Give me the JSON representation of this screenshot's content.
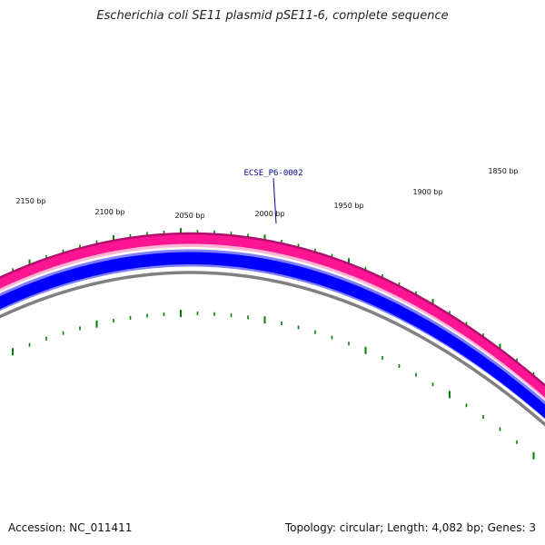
{
  "title": "Escherichia coli SE11 plasmid pSE11-6, complete sequence",
  "footer": {
    "accession": "Accession: NC_011411",
    "summary": "Topology: circular; Length: 4,082 bp; Genes: 3"
  },
  "colors": {
    "forward_track": "#ff1493",
    "forward_edge": "#b0106e",
    "forward_light": "#ffb6d5",
    "reverse_track": "#0000ff",
    "reverse_light": "#8080ff",
    "backbone": "#808080",
    "gc_marks": "#008000",
    "gene_label": "#00008b"
  },
  "scale_labels": [
    "2150 bp",
    "2100 bp",
    "2050 bp",
    "2000 bp",
    "1950 bp",
    "1900 bp",
    "1850 bp"
  ],
  "gene_label": "ECSE_P6-0002"
}
